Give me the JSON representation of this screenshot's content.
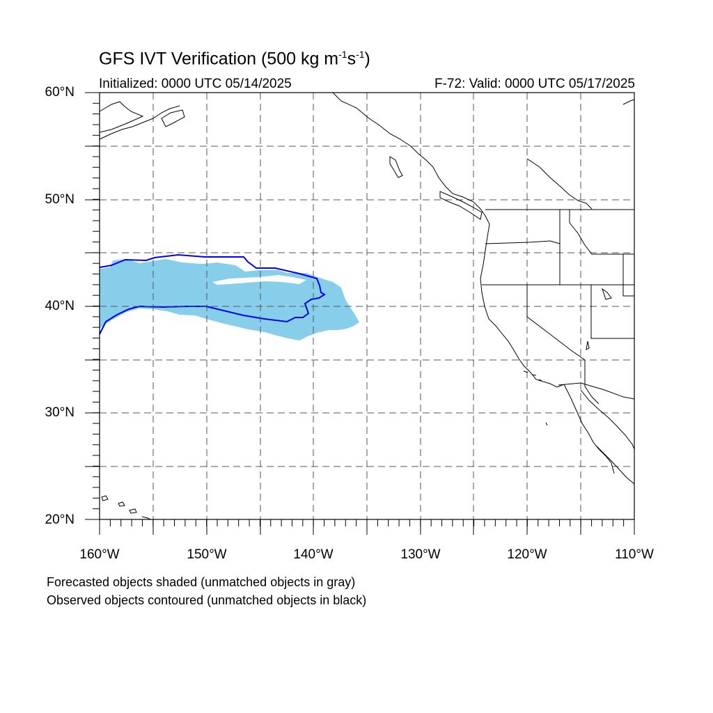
{
  "title_main": "GFS IVT Verification (500 kg m",
  "title_sup1": "-1",
  "title_mid": "s",
  "title_sup2": "-1",
  "title_end": ")",
  "initialized": "Initialized: 0000 UTC 05/14/2025",
  "valid": "F-72: Valid: 0000 UTC 05/17/2025",
  "lat_labels": [
    "60°N",
    "50°N",
    "40°N",
    "30°N",
    "20°N"
  ],
  "lon_labels": [
    "160°W",
    "150°W",
    "140°W",
    "130°W",
    "120°W",
    "110°W"
  ],
  "footnote_1": "Forecasted objects shaded (unmatched objects in gray)",
  "footnote_2": "Observed objects contoured (unmatched objects in black)",
  "colors": {
    "forecast_fill": "#87ceeb",
    "observed_contour": "#0000ee",
    "coastline": "#000000",
    "grid": "#555555"
  },
  "map_extent": {
    "lon_min": -160,
    "lon_max": -110,
    "lat_min": 20,
    "lat_max": 60
  }
}
